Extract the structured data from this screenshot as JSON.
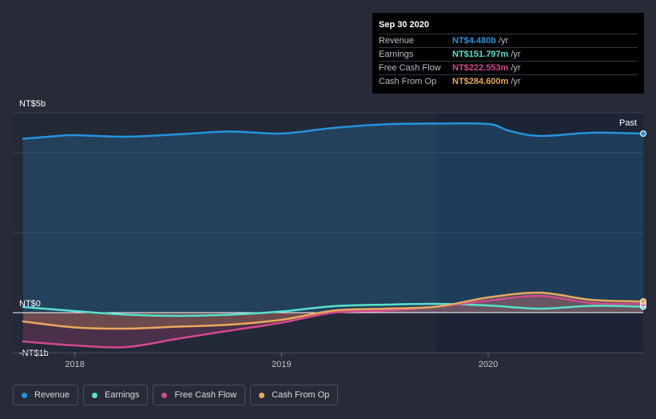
{
  "chart_data": {
    "type": "line",
    "title": "",
    "currency_prefix": "NT$",
    "y_axis_labels": [
      "NT$5b",
      "NT$0",
      "-NT$1b"
    ],
    "y_tick_values": [
      5,
      0,
      -1
    ],
    "ylim": [
      -1,
      5
    ],
    "xlim": [
      2017.7,
      2020.75
    ],
    "x_ticks": [
      2018,
      2019,
      2020
    ],
    "x_tick_labels": [
      "2018",
      "2019",
      "2020"
    ],
    "past_start": 2019.75,
    "past_label": "Past",
    "unit": "billions NT$",
    "series": [
      {
        "name": "Revenue",
        "color": "#2394df",
        "fill": true,
        "x": [
          2017.75,
          2017.92,
          2018.0,
          2018.25,
          2018.5,
          2018.75,
          2019.0,
          2019.25,
          2019.5,
          2019.75,
          2020.0,
          2020.1,
          2020.25,
          2020.5,
          2020.75
        ],
        "values": [
          4.35,
          4.42,
          4.44,
          4.4,
          4.46,
          4.53,
          4.48,
          4.62,
          4.71,
          4.73,
          4.72,
          4.55,
          4.42,
          4.5,
          4.48
        ]
      },
      {
        "name": "Earnings",
        "color": "#58e1cd",
        "fill": false,
        "x": [
          2017.75,
          2018.0,
          2018.25,
          2018.5,
          2018.75,
          2019.0,
          2019.25,
          2019.5,
          2019.75,
          2020.0,
          2020.25,
          2020.5,
          2020.75
        ],
        "values": [
          0.14,
          0.04,
          -0.05,
          -0.08,
          -0.05,
          0.03,
          0.16,
          0.2,
          0.22,
          0.18,
          0.1,
          0.17,
          0.15
        ]
      },
      {
        "name": "Free Cash Flow",
        "color": "#d4488f",
        "fill": true,
        "x": [
          2017.75,
          2018.0,
          2018.25,
          2018.5,
          2018.75,
          2019.0,
          2019.25,
          2019.5,
          2019.75,
          2020.0,
          2020.25,
          2020.5,
          2020.75
        ],
        "values": [
          -0.72,
          -0.82,
          -0.86,
          -0.65,
          -0.45,
          -0.25,
          0.0,
          0.05,
          0.15,
          0.3,
          0.42,
          0.24,
          0.22
        ]
      },
      {
        "name": "Cash From Op",
        "color": "#e9a85b",
        "fill": true,
        "x": [
          2017.75,
          2018.0,
          2018.25,
          2018.5,
          2018.75,
          2019.0,
          2019.25,
          2019.5,
          2019.75,
          2020.0,
          2020.25,
          2020.5,
          2020.75
        ],
        "values": [
          -0.22,
          -0.37,
          -0.4,
          -0.35,
          -0.3,
          -0.18,
          0.05,
          0.1,
          0.15,
          0.38,
          0.5,
          0.32,
          0.28
        ]
      }
    ]
  },
  "tooltip": {
    "date": "Sep 30 2020",
    "unit": "/yr",
    "rows": [
      {
        "label": "Revenue",
        "value": "NT$4.480b",
        "color": "#2394df"
      },
      {
        "label": "Earnings",
        "value": "NT$151.797m",
        "color": "#58e1cd"
      },
      {
        "label": "Free Cash Flow",
        "value": "NT$222.553m",
        "color": "#d4488f"
      },
      {
        "label": "Cash From Op",
        "value": "NT$284.600m",
        "color": "#e9a85b"
      }
    ]
  },
  "legend": [
    {
      "label": "Revenue",
      "color": "#2394df"
    },
    {
      "label": "Earnings",
      "color": "#58e1cd"
    },
    {
      "label": "Free Cash Flow",
      "color": "#d4488f"
    },
    {
      "label": "Cash From Op",
      "color": "#e9a85b"
    }
  ]
}
